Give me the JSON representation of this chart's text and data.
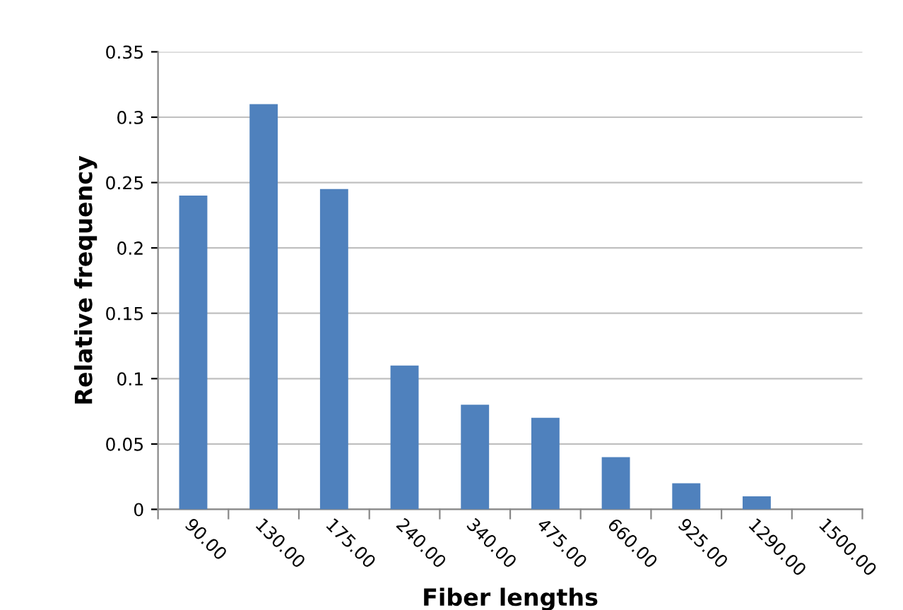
{
  "chart_data": {
    "type": "bar",
    "xlabel": "Fiber lengths",
    "ylabel": "Relative frequency",
    "categories": [
      "90.00",
      "130.00",
      "175.00",
      "240.00",
      "340.00",
      "475.00",
      "660.00",
      "925.00",
      "1290.00",
      "1500.00"
    ],
    "values": [
      0.24,
      0.31,
      0.245,
      0.11,
      0.08,
      0.07,
      0.04,
      0.02,
      0.01,
      0
    ],
    "color": "#4f81bd",
    "ylim": [
      0,
      0.35
    ],
    "yticks": [
      0,
      0.05,
      0.1,
      0.15,
      0.2,
      0.25,
      0.3,
      0.35
    ],
    "grid": "y"
  }
}
